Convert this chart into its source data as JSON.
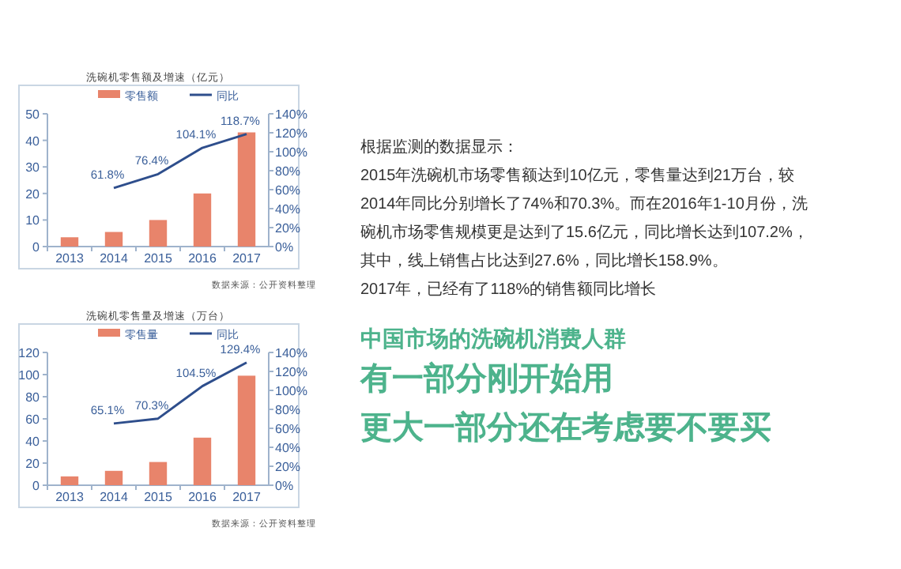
{
  "chart_data": [
    {
      "type": "bar",
      "title": "洗碗机零售额及增速（亿元）",
      "categories": [
        "2013",
        "2014",
        "2015",
        "2016",
        "2017"
      ],
      "series": [
        {
          "name": "零售额",
          "color": "#e8846b",
          "values": [
            3.5,
            5.5,
            10,
            20,
            43
          ]
        },
        {
          "name": "同比",
          "type": "line",
          "axis": "y2",
          "color": "#2e4e8c",
          "values": [
            null,
            61.8,
            76.4,
            104.1,
            118.7
          ],
          "value_labels": [
            null,
            "61.8%",
            "76.4%",
            "104.1%",
            "118.7%"
          ]
        }
      ],
      "ylim": [
        0,
        50
      ],
      "yticks": [
        0,
        10,
        20,
        30,
        40,
        50
      ],
      "y2lim": [
        0,
        140
      ],
      "y2ticks": [
        {
          "value": 0,
          "label": "0%"
        },
        {
          "value": 20,
          "label": "20%"
        },
        {
          "value": 40,
          "label": "40%"
        },
        {
          "value": 60,
          "label": "60%"
        },
        {
          "value": 80,
          "label": "80%"
        },
        {
          "value": 100,
          "label": "100%"
        },
        {
          "value": 120,
          "label": "120%"
        },
        {
          "value": 140,
          "label": "140%"
        }
      ],
      "legend": "top",
      "annotations": [
        "数据来源：公开资料整理"
      ]
    },
    {
      "type": "bar",
      "title": "洗碗机零售量及增速（万台）",
      "categories": [
        "2013",
        "2014",
        "2015",
        "2016",
        "2017"
      ],
      "series": [
        {
          "name": "零售量",
          "color": "#e8846b",
          "values": [
            8,
            13,
            21,
            43,
            99
          ]
        },
        {
          "name": "同比",
          "type": "line",
          "axis": "y2",
          "color": "#2e4e8c",
          "values": [
            null,
            65.1,
            70.3,
            104.5,
            129.4
          ],
          "value_labels": [
            null,
            "65.1%",
            "70.3%",
            "104.5%",
            "129.4%"
          ]
        }
      ],
      "ylim": [
        0,
        120
      ],
      "yticks": [
        0,
        20,
        40,
        60,
        80,
        100,
        120
      ],
      "y2lim": [
        0,
        140
      ],
      "y2ticks": [
        {
          "value": 0,
          "label": "0%"
        },
        {
          "value": 20,
          "label": "20%"
        },
        {
          "value": 40,
          "label": "40%"
        },
        {
          "value": 60,
          "label": "60%"
        },
        {
          "value": 80,
          "label": "80%"
        },
        {
          "value": 100,
          "label": "100%"
        },
        {
          "value": 120,
          "label": "120%"
        },
        {
          "value": 140,
          "label": "140%"
        }
      ],
      "legend": "top",
      "annotations": [
        "数据来源：公开资料整理"
      ]
    },
    {
      "type": "other",
      "title": "根据监测的数据显示：",
      "annotations": [
        "2015年洗碗机市场零售额达到10亿元，零售量达到21万台，较2014年同比分别增长了74%和70.3%。而在2016年1-10月份，洗碗机市场零售规模更是达到了15.6亿元，同比增长达到107.2%，其中，线上销售占比达到27.6%，同比增长158.9%。",
        "2017年，已经有了118%的销售额同比增长"
      ]
    },
    {
      "type": "other",
      "title": "中国市场的洗碗机消费人群",
      "annotations": [
        "有一部分刚开始用",
        "更大一部分还在考虑要不要买"
      ]
    }
  ]
}
